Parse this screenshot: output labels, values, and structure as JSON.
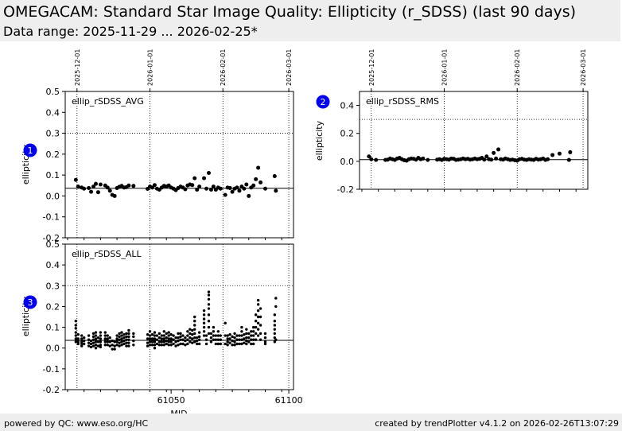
{
  "header": {
    "title": "OMEGACAM: Standard Star Image Quality: Ellipticity (r_SDSS) (last 90 days)",
    "subtitle": "Data range: 2025-11-29 ... 2026-02-25*"
  },
  "footer": {
    "left": "powered by QC: www.eso.org/HC",
    "right": "created by trendPlotter v4.1.2 on 2026-02-26T13:07:29"
  },
  "colors": {
    "badge": "#0000ee",
    "data": "#000000"
  },
  "chart_data": [
    {
      "type": "scatter",
      "badge": "1",
      "label": "ellip_rSDSS_AVG",
      "ylabel": "ellipticity",
      "xlim": [
        61005,
        61102
      ],
      "ylim": [
        -0.2,
        0.5
      ],
      "yticks": [
        "-0.2",
        "-0.1",
        "0.0",
        "0.1",
        "0.2",
        "0.3",
        "0.4",
        "0.5"
      ],
      "top_ticks": [
        "2025-12-01",
        "2026-01-01",
        "2026-02-01",
        "2026-03-01"
      ],
      "reference_y": 0.037,
      "threshold_y": 0.3,
      "x": [
        61009.5,
        61010.5,
        61012,
        61013,
        61015,
        61016,
        61017,
        61018,
        61019,
        61020,
        61022,
        61023,
        61024,
        61025,
        61026,
        61027,
        61028,
        61029,
        61030,
        61031,
        61032,
        61034,
        61040,
        61041,
        61042,
        61043,
        61044,
        61045,
        61046,
        61047,
        61048,
        61049,
        61050,
        61051,
        61052,
        61053,
        61054,
        61055,
        61056,
        61057,
        61058,
        61059,
        61060,
        61061,
        61062,
        61064,
        61065,
        61066,
        61067,
        61068,
        61069,
        61070,
        61071,
        61073,
        61074,
        61075,
        61076,
        61077,
        61078,
        61079,
        61080,
        61081,
        61082,
        61083,
        61084,
        61085,
        61086,
        61087,
        61088,
        61090,
        61094,
        61094.5
      ],
      "y": [
        0.077,
        0.045,
        0.04,
        0.035,
        0.038,
        0.02,
        0.045,
        0.058,
        0.018,
        0.055,
        0.05,
        0.04,
        0.025,
        0.005,
        0.0,
        0.038,
        0.044,
        0.048,
        0.04,
        0.042,
        0.05,
        0.048,
        0.034,
        0.045,
        0.04,
        0.052,
        0.035,
        0.03,
        0.04,
        0.048,
        0.045,
        0.05,
        0.04,
        0.035,
        0.028,
        0.038,
        0.045,
        0.04,
        0.032,
        0.05,
        0.055,
        0.052,
        0.085,
        0.03,
        0.045,
        0.085,
        0.035,
        0.11,
        0.03,
        0.045,
        0.03,
        0.04,
        0.035,
        0.005,
        0.04,
        0.038,
        0.02,
        0.035,
        0.04,
        0.025,
        0.045,
        0.035,
        0.055,
        0.0,
        0.04,
        0.05,
        0.08,
        0.135,
        0.065,
        0.035,
        0.095,
        0.025
      ]
    },
    {
      "type": "scatter",
      "badge": "2",
      "label": "ellip_rSDSS_RMS",
      "ylabel": "ellipticity",
      "xlim": [
        61005,
        61102
      ],
      "ylim": [
        -0.2,
        0.5
      ],
      "yticks": [
        "-0.2",
        "0.0",
        "0.2",
        "0.4"
      ],
      "top_ticks": [
        "2025-12-01",
        "2026-01-01",
        "2026-02-01",
        "2026-03-01"
      ],
      "reference_y": 0.012,
      "threshold_y": 0.3,
      "x": [
        61009,
        61010,
        61012,
        61016,
        61017,
        61018,
        61019,
        61020,
        61021,
        61022,
        61023,
        61024,
        61025,
        61026,
        61027,
        61028,
        61029,
        61030,
        61031,
        61032,
        61034,
        61038,
        61039,
        61040,
        61041,
        61042,
        61043,
        61044,
        61045,
        61046,
        61047,
        61048,
        61049,
        61050,
        61051,
        61052,
        61053,
        61054,
        61055,
        61056,
        61057,
        61058,
        61059,
        61060,
        61061,
        61062,
        61063,
        61064,
        61065,
        61066,
        61067,
        61068,
        61069,
        61070,
        61071,
        61072,
        61073,
        61074,
        61075,
        61076,
        61077,
        61078,
        61079,
        61080,
        61081,
        61082,
        61083,
        61084,
        61085,
        61087,
        61090,
        61094,
        61094.5
      ],
      "y": [
        0.035,
        0.015,
        0.01,
        0.01,
        0.012,
        0.02,
        0.015,
        0.01,
        0.02,
        0.025,
        0.015,
        0.008,
        0.005,
        0.015,
        0.02,
        0.018,
        0.012,
        0.025,
        0.015,
        0.02,
        0.01,
        0.012,
        0.015,
        0.01,
        0.018,
        0.015,
        0.012,
        0.02,
        0.018,
        0.01,
        0.012,
        0.015,
        0.02,
        0.015,
        0.018,
        0.012,
        0.015,
        0.02,
        0.015,
        0.018,
        0.025,
        0.012,
        0.035,
        0.015,
        0.012,
        0.06,
        0.02,
        0.085,
        0.015,
        0.012,
        0.02,
        0.015,
        0.01,
        0.012,
        0.008,
        0.005,
        0.015,
        0.018,
        0.012,
        0.01,
        0.015,
        0.012,
        0.01,
        0.018,
        0.012,
        0.015,
        0.02,
        0.01,
        0.015,
        0.045,
        0.055,
        0.01,
        0.065
      ]
    },
    {
      "type": "scatter",
      "badge": "3",
      "label": "ellip_rSDSS_ALL",
      "ylabel": "ellipticity",
      "xlabel": "MJD",
      "xlim": [
        61005,
        61102
      ],
      "ylim": [
        -0.2,
        0.5
      ],
      "yticks": [
        "-0.2",
        "-0.1",
        "0.0",
        "0.1",
        "0.2",
        "0.3",
        "0.4",
        "0.5"
      ],
      "xticks": [
        61050,
        61100
      ],
      "reference_y": 0.037,
      "threshold_y": 0.3,
      "x": [
        61009.5,
        61009.5,
        61009.5,
        61009.5,
        61009.5,
        61009.5,
        61009.5,
        61010.5,
        61010.5,
        61010.5,
        61010.5,
        61012,
        61012,
        61012,
        61012,
        61012,
        61013,
        61013,
        61013,
        61015,
        61015,
        61015,
        61015,
        61016,
        61016,
        61016,
        61017,
        61017,
        61017,
        61017,
        61017,
        61018,
        61018,
        61018,
        61018,
        61018,
        61018,
        61019,
        61019,
        61019,
        61020,
        61020,
        61020,
        61020,
        61020,
        61020,
        61022,
        61022,
        61022,
        61022,
        61022,
        61023,
        61023,
        61023,
        61023,
        61024,
        61024,
        61024,
        61025,
        61025,
        61025,
        61026,
        61026,
        61026,
        61027,
        61027,
        61027,
        61027,
        61028,
        61028,
        61028,
        61028,
        61028,
        61029,
        61029,
        61029,
        61029,
        61029,
        61030,
        61030,
        61030,
        61030,
        61031,
        61031,
        61031,
        61031,
        61031,
        61032,
        61032,
        61032,
        61032,
        61032,
        61032,
        61034,
        61034,
        61034,
        61034,
        61040,
        61040,
        61040,
        61040,
        61041,
        61041,
        61041,
        61041,
        61041,
        61042,
        61042,
        61042,
        61042,
        61043,
        61043,
        61043,
        61043,
        61043,
        61043,
        61044,
        61044,
        61044,
        61045,
        61045,
        61045,
        61045,
        61046,
        61046,
        61046,
        61046,
        61047,
        61047,
        61047,
        61047,
        61047,
        61048,
        61048,
        61048,
        61048,
        61049,
        61049,
        61049,
        61049,
        61049,
        61050,
        61050,
        61050,
        61050,
        61051,
        61051,
        61051,
        61052,
        61052,
        61052,
        61053,
        61053,
        61053,
        61053,
        61054,
        61054,
        61054,
        61054,
        61055,
        61055,
        61055,
        61056,
        61056,
        61056,
        61057,
        61057,
        61057,
        61057,
        61058,
        61058,
        61058,
        61058,
        61059,
        61059,
        61059,
        61059,
        61060,
        61060,
        61060,
        61060,
        61060,
        61060,
        61060,
        61061,
        61061,
        61061,
        61062,
        61062,
        61062,
        61062,
        61064,
        61064,
        61064,
        61064,
        61064,
        61064,
        61064,
        61065,
        61065,
        61065,
        61066,
        61066,
        61066,
        61066,
        61066,
        61066,
        61066,
        61066,
        61066,
        61067,
        61067,
        61067,
        61068,
        61068,
        61068,
        61068,
        61069,
        61069,
        61069,
        61070,
        61070,
        61070,
        61070,
        61071,
        61071,
        61071,
        61073,
        61073,
        61073,
        61074,
        61074,
        61074,
        61074,
        61075,
        61075,
        61075,
        61076,
        61076,
        61076,
        61077,
        61077,
        61077,
        61077,
        61078,
        61078,
        61078,
        61079,
        61079,
        61079,
        61080,
        61080,
        61080,
        61080,
        61080,
        61081,
        61081,
        61081,
        61082,
        61082,
        61082,
        61082,
        61082,
        61083,
        61083,
        61083,
        61084,
        61084,
        61084,
        61084,
        61085,
        61085,
        61085,
        61085,
        61085,
        61086,
        61086,
        61086,
        61086,
        61086,
        61087,
        61087,
        61087,
        61087,
        61087,
        61087,
        61087,
        61088,
        61088,
        61088,
        61088,
        61088,
        61090,
        61090,
        61090,
        61090,
        61094,
        61094,
        61094,
        61094,
        61094,
        61094,
        61094,
        61094.5,
        61094.5,
        61094.5
      ],
      "y": [
        0.13,
        0.11,
        0.095,
        0.075,
        0.06,
        0.045,
        0.03,
        0.065,
        0.045,
        0.03,
        0.02,
        0.06,
        0.045,
        0.03,
        0.02,
        0.01,
        0.05,
        0.035,
        0.02,
        0.06,
        0.04,
        0.025,
        0.01,
        0.035,
        0.02,
        0.005,
        0.07,
        0.055,
        0.04,
        0.025,
        0.01,
        0.075,
        0.06,
        0.045,
        0.03,
        0.015,
        0.0,
        0.05,
        0.03,
        0.01,
        0.075,
        0.06,
        0.045,
        0.03,
        0.015,
        0.005,
        0.075,
        0.06,
        0.045,
        0.03,
        0.015,
        0.06,
        0.045,
        0.03,
        0.015,
        0.05,
        0.03,
        0.01,
        0.035,
        0.015,
        -0.005,
        0.03,
        0.01,
        -0.005,
        0.06,
        0.045,
        0.03,
        0.015,
        0.07,
        0.055,
        0.04,
        0.025,
        0.01,
        0.075,
        0.06,
        0.045,
        0.03,
        0.015,
        0.065,
        0.05,
        0.035,
        0.02,
        0.07,
        0.055,
        0.04,
        0.025,
        0.01,
        0.085,
        0.07,
        0.055,
        0.04,
        0.025,
        0.01,
        0.07,
        0.055,
        0.035,
        0.015,
        0.065,
        0.045,
        0.025,
        0.01,
        0.08,
        0.06,
        0.045,
        0.03,
        0.015,
        0.065,
        0.045,
        0.03,
        0.015,
        0.075,
        0.06,
        0.045,
        0.03,
        0.015,
        0.0,
        0.06,
        0.04,
        0.02,
        0.07,
        0.05,
        0.03,
        0.015,
        0.06,
        0.045,
        0.03,
        0.015,
        0.08,
        0.06,
        0.045,
        0.03,
        0.015,
        0.07,
        0.05,
        0.035,
        0.02,
        0.075,
        0.06,
        0.045,
        0.03,
        0.015,
        0.065,
        0.045,
        0.03,
        0.015,
        0.06,
        0.04,
        0.02,
        0.05,
        0.03,
        0.01,
        0.07,
        0.05,
        0.035,
        0.015,
        0.07,
        0.055,
        0.04,
        0.02,
        0.06,
        0.04,
        0.02,
        0.05,
        0.035,
        0.015,
        0.08,
        0.06,
        0.04,
        0.02,
        0.09,
        0.07,
        0.05,
        0.03,
        0.085,
        0.065,
        0.045,
        0.025,
        0.15,
        0.13,
        0.11,
        0.09,
        0.07,
        0.05,
        0.03,
        0.05,
        0.035,
        0.02,
        0.075,
        0.055,
        0.04,
        0.02,
        0.18,
        0.16,
        0.14,
        0.12,
        0.1,
        0.08,
        0.06,
        0.06,
        0.04,
        0.02,
        0.27,
        0.255,
        0.235,
        0.21,
        0.19,
        0.16,
        0.13,
        0.1,
        0.07,
        0.07,
        0.05,
        0.03,
        0.1,
        0.08,
        0.06,
        0.04,
        0.06,
        0.04,
        0.02,
        0.08,
        0.06,
        0.04,
        0.02,
        0.06,
        0.04,
        0.02,
        0.12,
        0.06,
        0.02,
        0.06,
        0.045,
        0.03,
        0.015,
        0.065,
        0.045,
        0.025,
        0.055,
        0.035,
        0.015,
        0.07,
        0.05,
        0.03,
        0.015,
        0.06,
        0.04,
        0.02,
        0.06,
        0.04,
        0.02,
        0.1,
        0.08,
        0.06,
        0.04,
        0.02,
        0.065,
        0.045,
        0.025,
        0.09,
        0.07,
        0.05,
        0.035,
        0.02,
        0.07,
        0.05,
        0.03,
        0.08,
        0.06,
        0.04,
        0.02,
        0.1,
        0.08,
        0.06,
        0.04,
        0.02,
        0.16,
        0.13,
        0.1,
        0.07,
        0.04,
        0.23,
        0.21,
        0.18,
        0.15,
        0.12,
        0.09,
        0.06,
        0.19,
        0.15,
        0.11,
        0.07,
        0.04,
        0.07,
        0.05,
        0.03,
        0.02,
        0.16,
        0.13,
        0.11,
        0.09,
        0.07,
        0.05,
        0.03,
        0.24,
        0.2,
        0.04
      ]
    }
  ]
}
